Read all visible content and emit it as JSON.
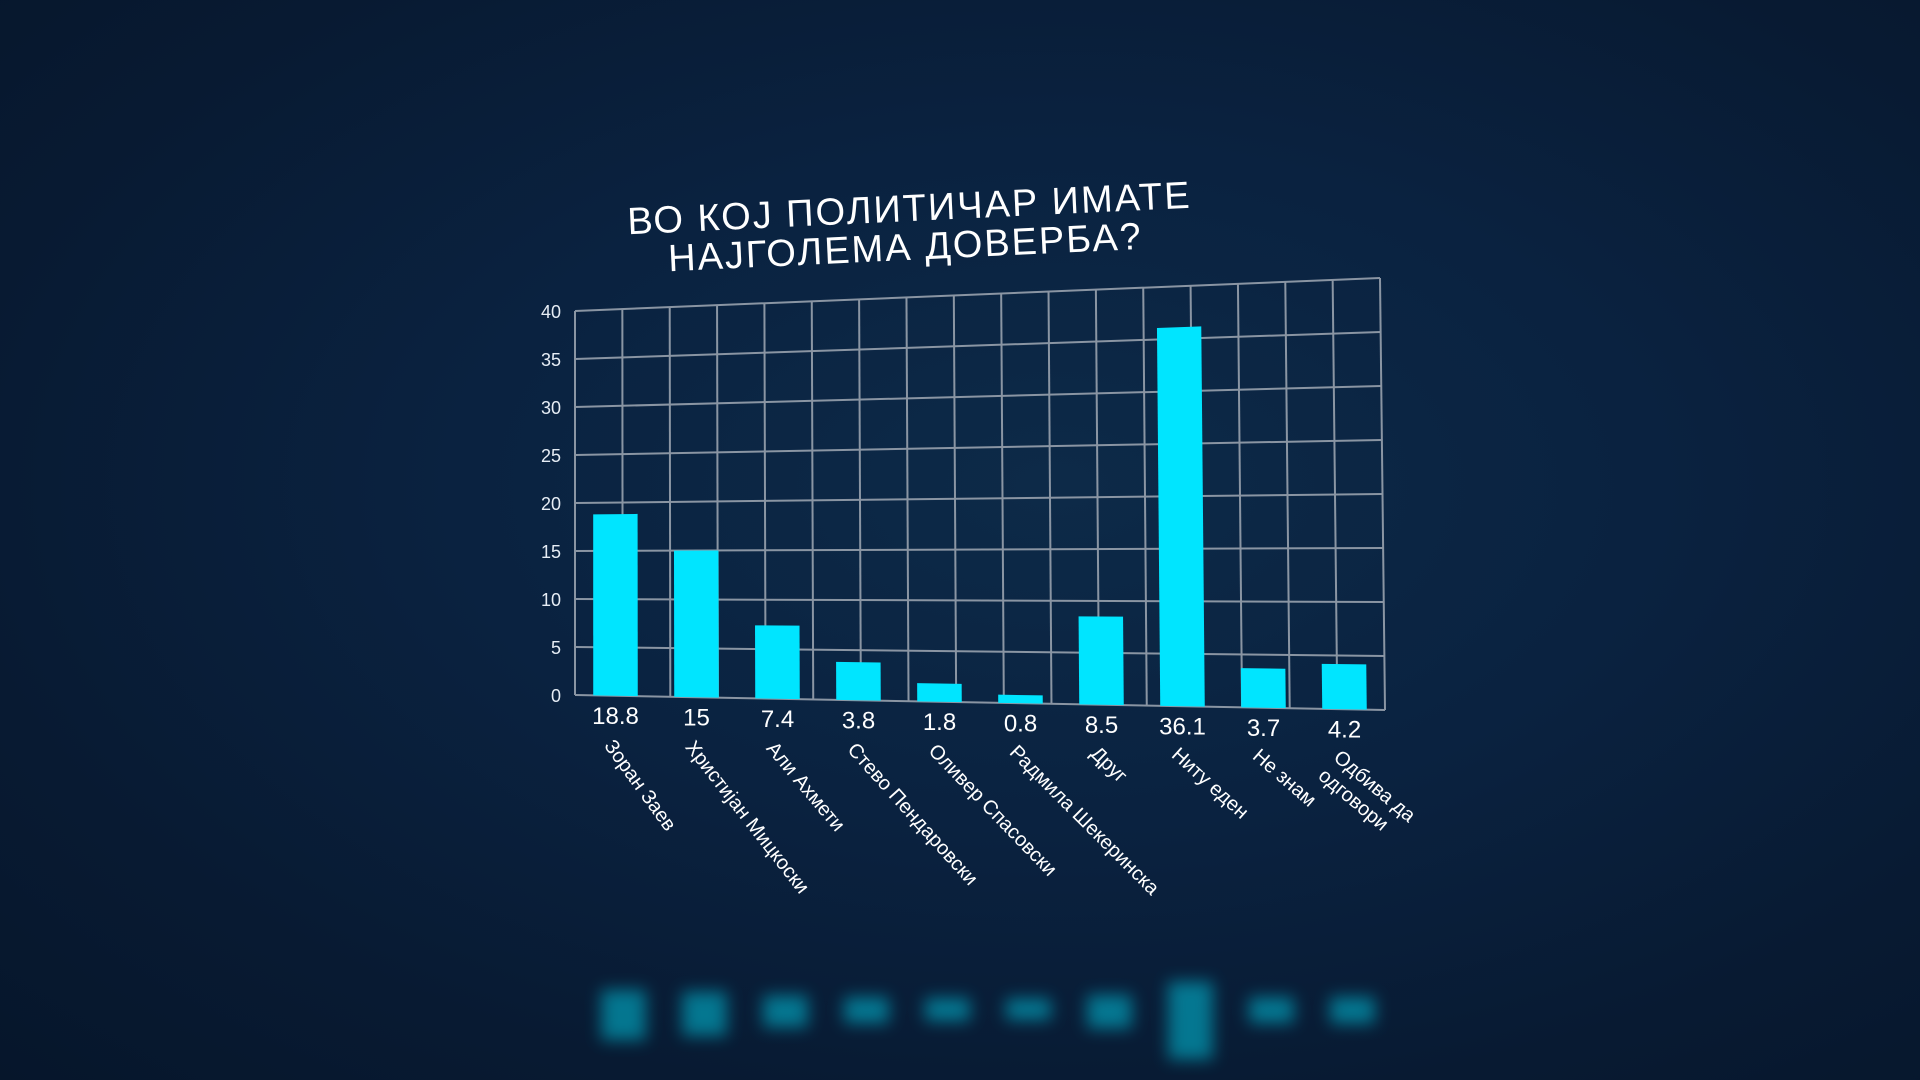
{
  "chart_data": {
    "type": "bar",
    "title_lines": [
      "ВО КОЈ ПОЛИТИЧАР ИМАТЕ",
      "НАЈГОЛЕМА ДОВЕРБА?"
    ],
    "categories": [
      "Зоран Заев",
      "Христијан Мицкоски",
      "Али Ахмети",
      "Стево Пендаровски",
      "Оливер Спасовски",
      "Радмила Шекеринска",
      "Друг",
      "Ниту еден",
      "Не знам",
      "Одбива да одговори"
    ],
    "category_lines": [
      [
        "Зоран Заев"
      ],
      [
        "Христијан Мицкоски"
      ],
      [
        "Али Ахмети"
      ],
      [
        "Стево Пендаровски"
      ],
      [
        "Оливер Спасовски"
      ],
      [
        "Радмила Шекеринска"
      ],
      [
        "Друг"
      ],
      [
        "Ниту еден"
      ],
      [
        "Не знам"
      ],
      [
        "Одбива да",
        "одговори"
      ]
    ],
    "values": [
      18.8,
      15,
      7.4,
      3.8,
      1.8,
      0.8,
      8.5,
      36.1,
      3.7,
      4.2
    ],
    "value_labels": [
      "18.8",
      "15",
      "7.4",
      "3.8",
      "1.8",
      "0.8",
      "8.5",
      "36.1",
      "3.7",
      "4.2"
    ],
    "y_ticks": [
      "0",
      "5",
      "10",
      "15",
      "20",
      "25",
      "30",
      "35",
      "40"
    ],
    "ylim": [
      0,
      40
    ],
    "grid": true,
    "bar_color": "#00e5ff",
    "grid_color": "#8a95a3"
  }
}
